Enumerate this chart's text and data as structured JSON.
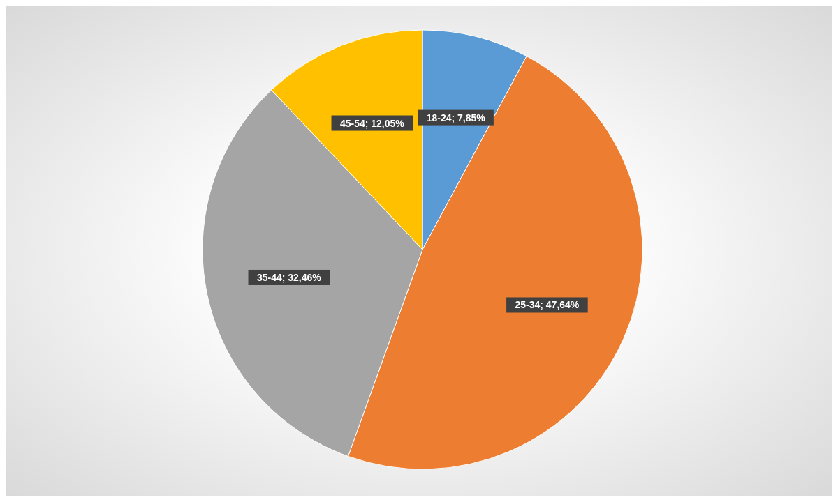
{
  "chart_data": {
    "type": "pie",
    "categories": [
      "18-24",
      "25-34",
      "35-44",
      "45-54"
    ],
    "values": [
      7.85,
      47.64,
      32.46,
      12.05
    ],
    "colors": [
      "#5b9bd5",
      "#ed7d31",
      "#a5a5a5",
      "#ffc000"
    ],
    "value_labels": [
      "7,85%",
      "47,64%",
      "32,46%",
      "12,05%"
    ]
  }
}
